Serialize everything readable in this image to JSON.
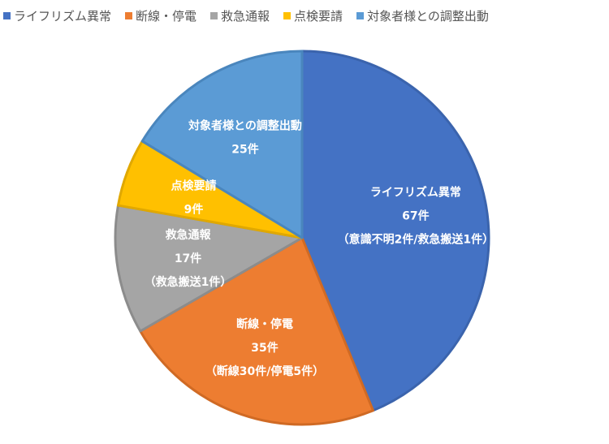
{
  "chart_data": {
    "type": "pie",
    "legend_position": "top",
    "slices": [
      {
        "name": "ライフリズム異常",
        "value": 67,
        "color": "#4472C4",
        "border": "#3B64AD",
        "label_lines": [
          "ライフリズム異常",
          "67件",
          "（意識不明2件/救急搬送1件）"
        ]
      },
      {
        "name": "断線・停電",
        "value": 35,
        "color": "#ED7D31",
        "border": "#D06A24",
        "label_lines": [
          "断線・停電",
          "35件",
          "（断線30件/停電5件）"
        ]
      },
      {
        "name": "救急通報",
        "value": 17,
        "color": "#A5A5A5",
        "border": "#8C8C8C",
        "label_lines": [
          "救急通報",
          "17件",
          "（救急搬送1件）"
        ]
      },
      {
        "name": "点検要請",
        "value": 9,
        "color": "#FFC000",
        "border": "#E0A800",
        "label_lines": [
          "点検要請",
          "9件"
        ]
      },
      {
        "name": "対象者様との調整出動",
        "value": 25,
        "color": "#5B9BD5",
        "border": "#4A86BD",
        "label_lines": [
          "対象者様との調整出動",
          "25件"
        ]
      }
    ]
  }
}
